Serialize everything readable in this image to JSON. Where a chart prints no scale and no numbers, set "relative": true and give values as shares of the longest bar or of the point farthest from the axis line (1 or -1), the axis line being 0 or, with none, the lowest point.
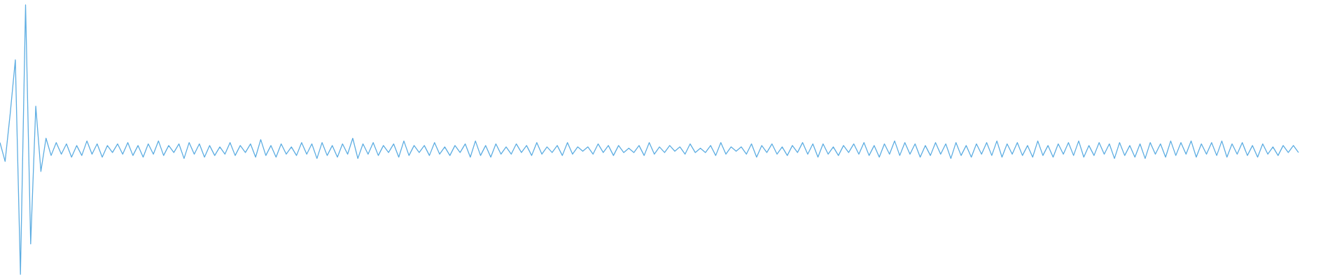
{
  "chart_data": {
    "type": "line",
    "relative": true,
    "marker": "none",
    "line_style": "solid",
    "categories": [
      null,
      null,
      null,
      null,
      null,
      null,
      null,
      null,
      null,
      null,
      null,
      null,
      null,
      null,
      null,
      null,
      null,
      null,
      null,
      null,
      null,
      null,
      null,
      null,
      null,
      null,
      null,
      null,
      null,
      null,
      null,
      null,
      null,
      null,
      null,
      null,
      null,
      null,
      null,
      null,
      null,
      null,
      null,
      null,
      null,
      null,
      null,
      null,
      null,
      null,
      null,
      null,
      null,
      null,
      null,
      null,
      null,
      null,
      null,
      null,
      null,
      null,
      null,
      null,
      null,
      null,
      null,
      null,
      null,
      null,
      null,
      null,
      null,
      null,
      null,
      null,
      null,
      null,
      null,
      null,
      null,
      null,
      null,
      null,
      null,
      null,
      null,
      null,
      null,
      null,
      null,
      null,
      null,
      null,
      null,
      null,
      null,
      null,
      null,
      null,
      null,
      null,
      null,
      null,
      null,
      null,
      null,
      null,
      null,
      null,
      null,
      null,
      null,
      null,
      null,
      null,
      null,
      null,
      null,
      null,
      null,
      null,
      null,
      null,
      null,
      null,
      null,
      null,
      null,
      null,
      null,
      null,
      null,
      null,
      null,
      null,
      null,
      null,
      null,
      null,
      null,
      null,
      null,
      null,
      null,
      null,
      null,
      null,
      null,
      null,
      null,
      null,
      null,
      null,
      null,
      null,
      null,
      null,
      null,
      null,
      null,
      null,
      null,
      null,
      null,
      null,
      null,
      null,
      null,
      null,
      null,
      null,
      null,
      null,
      null,
      null,
      null,
      null,
      null,
      null,
      null,
      null,
      null,
      null,
      null,
      null,
      null,
      null,
      null,
      null,
      null,
      null,
      null,
      null,
      null,
      null,
      null,
      null,
      null,
      null,
      null,
      null,
      null,
      null,
      null,
      null,
      null,
      null,
      null,
      null,
      null,
      null,
      null,
      null,
      null,
      null,
      null,
      null,
      null,
      null,
      null,
      null,
      null,
      null,
      null,
      null,
      null,
      null,
      null,
      null,
      null,
      null,
      null,
      null,
      null,
      null,
      null,
      null,
      null,
      null,
      null,
      null,
      null,
      null,
      null,
      null,
      null,
      null,
      null,
      null,
      null,
      null,
      null,
      null,
      null
    ],
    "series": [
      {
        "color": "#5dade2",
        "values": [
          0.489,
          0.419,
          0.597,
          0.796,
          0,
          1,
          0.113,
          0.624,
          0.382,
          0.505,
          0.441,
          0.489,
          0.446,
          0.484,
          0.435,
          0.478,
          0.441,
          0.495,
          0.446,
          0.484,
          0.435,
          0.478,
          0.452,
          0.484,
          0.446,
          0.489,
          0.441,
          0.478,
          0.435,
          0.484,
          0.446,
          0.495,
          0.441,
          0.478,
          0.452,
          0.484,
          0.43,
          0.489,
          0.446,
          0.484,
          0.435,
          0.478,
          0.441,
          0.473,
          0.446,
          0.489,
          0.441,
          0.478,
          0.452,
          0.484,
          0.435,
          0.5,
          0.441,
          0.478,
          0.435,
          0.484,
          0.446,
          0.473,
          0.441,
          0.489,
          0.446,
          0.484,
          0.43,
          0.489,
          0.441,
          0.478,
          0.435,
          0.484,
          0.446,
          0.505,
          0.43,
          0.484,
          0.446,
          0.489,
          0.441,
          0.478,
          0.452,
          0.484,
          0.435,
          0.495,
          0.441,
          0.478,
          0.452,
          0.478,
          0.441,
          0.489,
          0.446,
          0.473,
          0.441,
          0.478,
          0.452,
          0.484,
          0.435,
          0.495,
          0.441,
          0.478,
          0.435,
          0.484,
          0.446,
          0.473,
          0.446,
          0.484,
          0.452,
          0.478,
          0.441,
          0.489,
          0.446,
          0.473,
          0.452,
          0.478,
          0.441,
          0.489,
          0.446,
          0.473,
          0.457,
          0.473,
          0.446,
          0.484,
          0.452,
          0.478,
          0.441,
          0.478,
          0.452,
          0.468,
          0.452,
          0.478,
          0.441,
          0.489,
          0.446,
          0.473,
          0.452,
          0.478,
          0.457,
          0.473,
          0.446,
          0.484,
          0.452,
          0.468,
          0.452,
          0.478,
          0.441,
          0.489,
          0.446,
          0.473,
          0.457,
          0.473,
          0.446,
          0.484,
          0.435,
          0.478,
          0.452,
          0.484,
          0.446,
          0.473,
          0.441,
          0.478,
          0.452,
          0.489,
          0.446,
          0.484,
          0.435,
          0.484,
          0.446,
          0.473,
          0.441,
          0.478,
          0.452,
          0.484,
          0.446,
          0.489,
          0.441,
          0.478,
          0.435,
          0.484,
          0.446,
          0.495,
          0.441,
          0.489,
          0.446,
          0.484,
          0.435,
          0.478,
          0.441,
          0.489,
          0.446,
          0.484,
          0.43,
          0.489,
          0.441,
          0.478,
          0.435,
          0.484,
          0.446,
          0.489,
          0.441,
          0.495,
          0.435,
          0.484,
          0.446,
          0.489,
          0.441,
          0.478,
          0.435,
          0.495,
          0.441,
          0.478,
          0.435,
          0.484,
          0.446,
          0.489,
          0.441,
          0.495,
          0.435,
          0.478,
          0.441,
          0.489,
          0.446,
          0.484,
          0.43,
          0.489,
          0.441,
          0.478,
          0.435,
          0.484,
          0.43,
          0.489,
          0.446,
          0.484,
          0.435,
          0.495,
          0.441,
          0.489,
          0.446,
          0.495,
          0.435,
          0.484,
          0.446,
          0.489,
          0.441,
          0.495,
          0.435,
          0.484,
          0.446,
          0.489,
          0.441,
          0.478,
          0.435,
          0.484,
          0.446,
          0.473,
          0.441,
          0.478,
          0.452,
          0.478,
          0.452
        ]
      }
    ]
  }
}
